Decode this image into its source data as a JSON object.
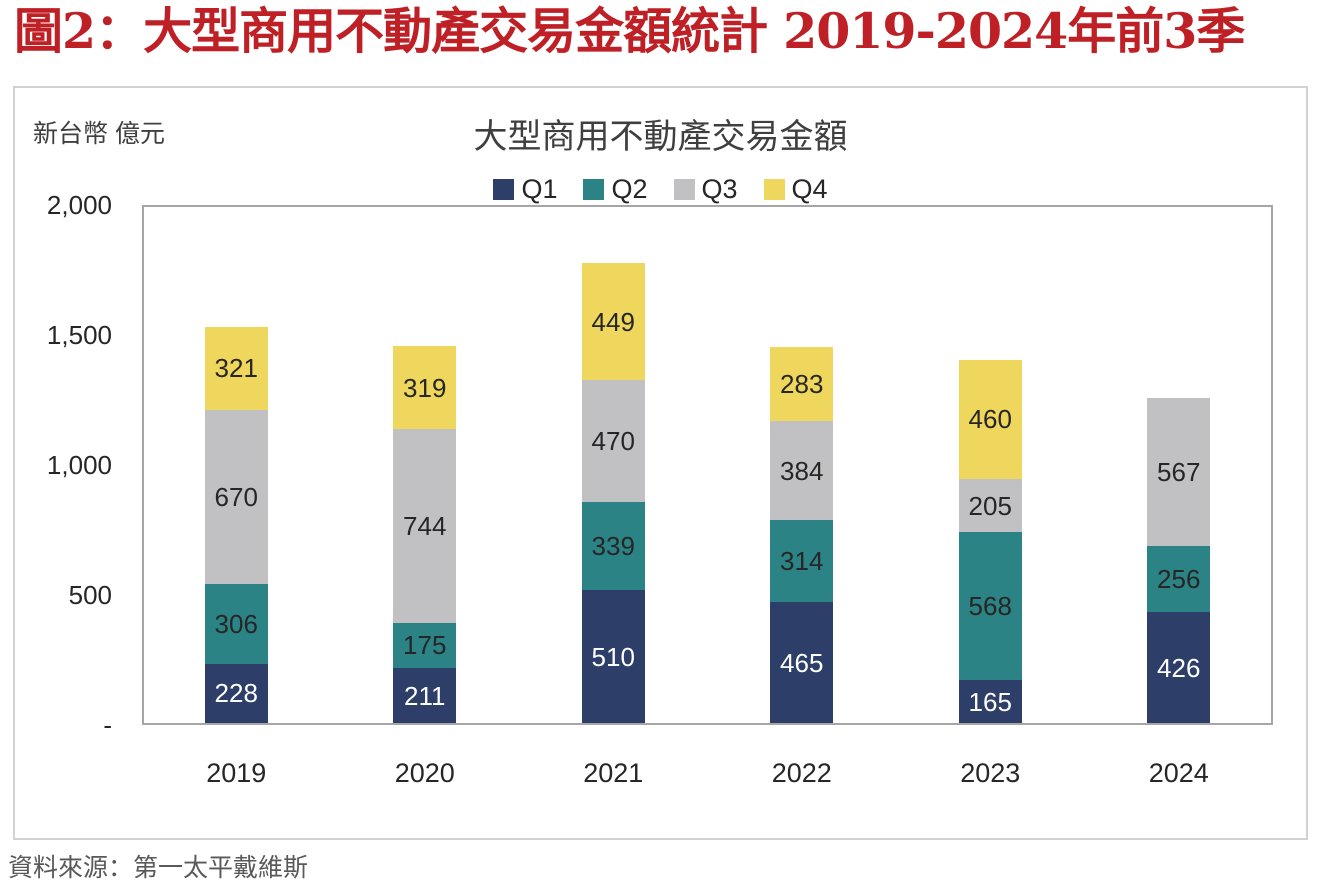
{
  "figure_title": "圖2：大型商用不動產交易金額統計 2019-2024年前3季",
  "chart": {
    "title": "大型商用不動產交易金額",
    "units_label": "新台幣 億元"
  },
  "source": "資料來源：第一太平戴維斯",
  "chart_data": {
    "type": "bar",
    "stacked": true,
    "title": "大型商用不動產交易金額",
    "ylabel": "新台幣 億元",
    "xlabel": "",
    "categories": [
      "2019",
      "2020",
      "2021",
      "2022",
      "2023",
      "2024"
    ],
    "series": [
      {
        "name": "Q1",
        "color": "#2D3E69",
        "label_color": "#FFFFFF",
        "values": [
          228,
          211,
          510,
          465,
          165,
          426
        ]
      },
      {
        "name": "Q2",
        "color": "#2B8386",
        "label_color": "#262626",
        "values": [
          306,
          175,
          339,
          314,
          568,
          256
        ]
      },
      {
        "name": "Q3",
        "color": "#C1C1C3",
        "label_color": "#262626",
        "values": [
          670,
          744,
          470,
          384,
          205,
          567
        ]
      },
      {
        "name": "Q4",
        "color": "#EFD75D",
        "label_color": "#262626",
        "values": [
          321,
          319,
          449,
          283,
          460,
          null
        ]
      }
    ],
    "totals": [
      1525,
      1449,
      1768,
      1446,
      1398,
      1249
    ],
    "ylim": [
      0,
      2000
    ],
    "yticks": [
      {
        "value": 2000,
        "label": "2,000"
      },
      {
        "value": 1500,
        "label": "1,500"
      },
      {
        "value": 1000,
        "label": "1,000"
      },
      {
        "value": 500,
        "label": "500"
      },
      {
        "value": 0,
        "label": "-"
      }
    ],
    "legend_position": "top-center",
    "grid": false,
    "data_labels": true
  }
}
